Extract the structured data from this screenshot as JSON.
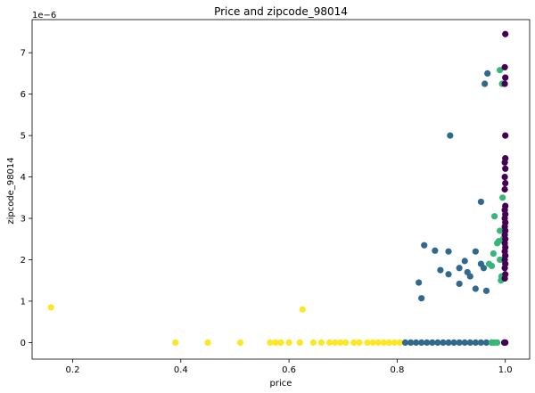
{
  "chart_data": {
    "type": "scatter",
    "title": "Price and zipcode_98014",
    "xlabel": "price",
    "ylabel": "zipcode_98014",
    "xlim": [
      0.125,
      1.045
    ],
    "ylim": [
      -0.4,
      7.8
    ],
    "y_offset_label": "1e−6",
    "x_ticks": [
      0.2,
      0.4,
      0.6,
      0.8,
      1.0
    ],
    "x_tick_labels": [
      "0.2",
      "0.4",
      "0.6",
      "0.8",
      "1.0"
    ],
    "y_ticks": [
      0,
      1,
      2,
      3,
      4,
      5,
      6,
      7
    ],
    "y_tick_labels": [
      "0",
      "1",
      "2",
      "3",
      "4",
      "5",
      "6",
      "7"
    ],
    "grid": false,
    "colors": {
      "purple": "#440154",
      "blue": "#31688e",
      "green": "#35b779",
      "yellow": "#fde725"
    },
    "series": [
      {
        "color": "#fde725",
        "points": [
          [
            0.16,
            0.85
          ],
          [
            0.39,
            0.0
          ],
          [
            0.45,
            0.0
          ],
          [
            0.51,
            0.0
          ],
          [
            0.565,
            0.0
          ],
          [
            0.575,
            0.0
          ],
          [
            0.585,
            0.0
          ],
          [
            0.6,
            0.0
          ],
          [
            0.62,
            0.0
          ],
          [
            0.625,
            0.8
          ],
          [
            0.645,
            0.0
          ],
          [
            0.66,
            0.0
          ],
          [
            0.675,
            0.0
          ],
          [
            0.685,
            0.0
          ],
          [
            0.695,
            0.0
          ],
          [
            0.705,
            0.0
          ],
          [
            0.72,
            0.0
          ],
          [
            0.73,
            0.0
          ],
          [
            0.745,
            0.0
          ],
          [
            0.755,
            0.0
          ],
          [
            0.765,
            0.0
          ],
          [
            0.775,
            0.0
          ],
          [
            0.785,
            0.0
          ],
          [
            0.795,
            0.0
          ],
          [
            0.805,
            0.0
          ]
        ]
      },
      {
        "color": "#31688e",
        "points": [
          [
            0.815,
            0.0
          ],
          [
            0.825,
            0.0
          ],
          [
            0.835,
            0.0
          ],
          [
            0.845,
            0.0
          ],
          [
            0.855,
            0.0
          ],
          [
            0.865,
            0.0
          ],
          [
            0.875,
            0.0
          ],
          [
            0.885,
            0.0
          ],
          [
            0.895,
            0.0
          ],
          [
            0.905,
            0.0
          ],
          [
            0.915,
            0.0
          ],
          [
            0.925,
            0.0
          ],
          [
            0.935,
            0.0
          ],
          [
            0.945,
            0.0
          ],
          [
            0.955,
            0.0
          ],
          [
            0.965,
            0.0
          ],
          [
            0.975,
            0.0
          ],
          [
            0.84,
            1.45
          ],
          [
            0.845,
            1.07
          ],
          [
            0.85,
            2.35
          ],
          [
            0.87,
            2.22
          ],
          [
            0.88,
            1.75
          ],
          [
            0.895,
            1.65
          ],
          [
            0.895,
            2.2
          ],
          [
            0.898,
            5.0
          ],
          [
            0.915,
            1.8
          ],
          [
            0.915,
            1.42
          ],
          [
            0.925,
            1.97
          ],
          [
            0.93,
            1.7
          ],
          [
            0.935,
            1.6
          ],
          [
            0.945,
            1.3
          ],
          [
            0.945,
            2.2
          ],
          [
            0.955,
            1.9
          ],
          [
            0.955,
            3.4
          ],
          [
            0.96,
            1.8
          ],
          [
            0.962,
            6.25
          ],
          [
            0.965,
            1.25
          ],
          [
            0.967,
            6.5
          ]
        ]
      },
      {
        "color": "#35b779",
        "points": [
          [
            0.975,
            0.0
          ],
          [
            0.98,
            0.0
          ],
          [
            0.985,
            0.0
          ],
          [
            0.97,
            1.9
          ],
          [
            0.975,
            1.85
          ],
          [
            0.978,
            2.15
          ],
          [
            0.98,
            3.05
          ],
          [
            0.985,
            2.4
          ],
          [
            0.988,
            2.45
          ],
          [
            0.99,
            2.7
          ],
          [
            0.99,
            2.0
          ],
          [
            0.992,
            1.5
          ],
          [
            0.993,
            1.6
          ],
          [
            0.99,
            6.58
          ],
          [
            0.994,
            6.25
          ],
          [
            0.995,
            3.5
          ],
          [
            0.996,
            2.5
          ],
          [
            0.994,
            2.0
          ]
        ]
      },
      {
        "color": "#440154",
        "points": [
          [
            0.998,
            0.0
          ],
          [
            1.0,
            0.0
          ],
          [
            0.999,
            1.55
          ],
          [
            1.0,
            1.65
          ],
          [
            0.999,
            1.8
          ],
          [
            1.0,
            1.9
          ],
          [
            0.999,
            2.0
          ],
          [
            1.0,
            2.1
          ],
          [
            0.999,
            2.2
          ],
          [
            1.0,
            2.3
          ],
          [
            0.999,
            2.4
          ],
          [
            1.0,
            2.5
          ],
          [
            0.999,
            2.6
          ],
          [
            1.0,
            2.7
          ],
          [
            0.999,
            2.8
          ],
          [
            1.0,
            2.9
          ],
          [
            0.999,
            3.0
          ],
          [
            1.0,
            3.1
          ],
          [
            0.999,
            3.2
          ],
          [
            1.0,
            3.3
          ],
          [
            0.999,
            3.7
          ],
          [
            1.0,
            3.85
          ],
          [
            0.999,
            4.0
          ],
          [
            1.0,
            4.2
          ],
          [
            0.999,
            4.35
          ],
          [
            1.0,
            4.45
          ],
          [
            1.0,
            5.0
          ],
          [
            0.999,
            6.25
          ],
          [
            1.0,
            6.4
          ],
          [
            0.999,
            6.65
          ],
          [
            1.0,
            7.45
          ]
        ]
      }
    ]
  }
}
